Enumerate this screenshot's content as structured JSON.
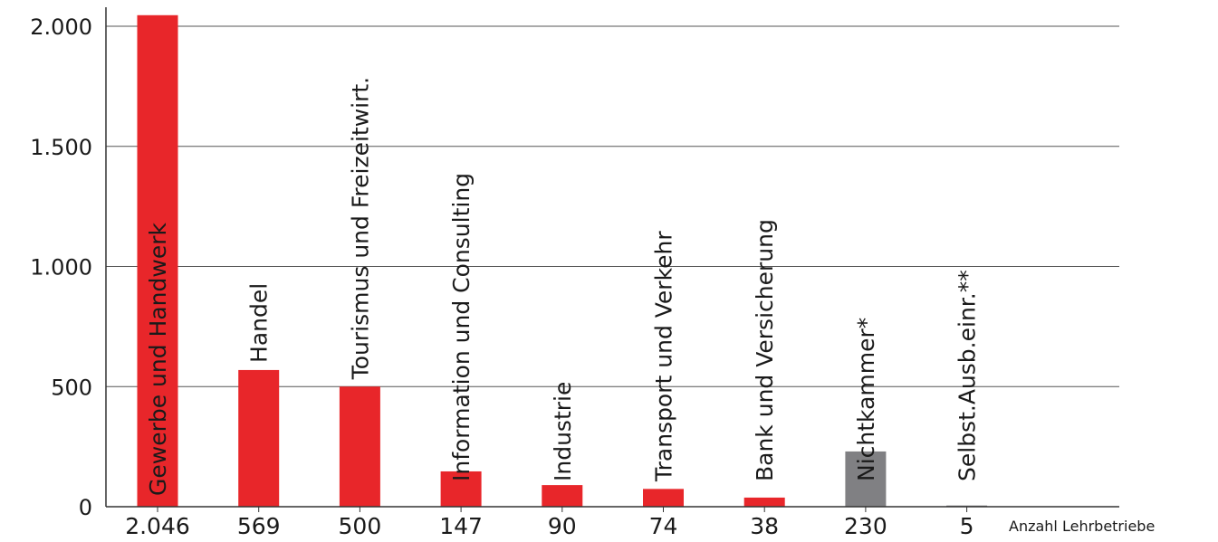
{
  "chart_data": {
    "type": "bar",
    "categories": [
      "Gewerbe und Handwerk",
      "Handel",
      "Tourismus und Freizeitwirt.",
      "Information und Consulting",
      "Industrie",
      "Transport und Verkehr",
      "Bank und Versicherung",
      "Nichtkammer*",
      "Selbst.Ausb.einr.**"
    ],
    "values": [
      2046,
      569,
      500,
      147,
      90,
      74,
      38,
      230,
      5
    ],
    "value_labels": [
      "2.046",
      "569",
      "500",
      "147",
      "90",
      "74",
      "38",
      "230",
      "5"
    ],
    "colors": [
      "#e8262a",
      "#e8262a",
      "#e8262a",
      "#e8262a",
      "#e8262a",
      "#e8262a",
      "#e8262a",
      "#808083",
      "#808083"
    ],
    "label_colors": [
      "#ffffff",
      "#1a1a1a",
      "#1a1a1a",
      "#1a1a1a",
      "#1a1a1a",
      "#1a1a1a",
      "#1a1a1a",
      "#1a1a1a",
      "#1a1a1a"
    ],
    "yticks": [
      0,
      500,
      1000,
      1500,
      2000
    ],
    "ytick_labels": [
      "0",
      "500",
      "1.000",
      "1.500",
      "2.000"
    ],
    "ylim": [
      0,
      2050
    ],
    "grid": true,
    "unit_label": "Anzahl Lehrbetriebe",
    "title": "",
    "xlabel": "",
    "ylabel": ""
  }
}
